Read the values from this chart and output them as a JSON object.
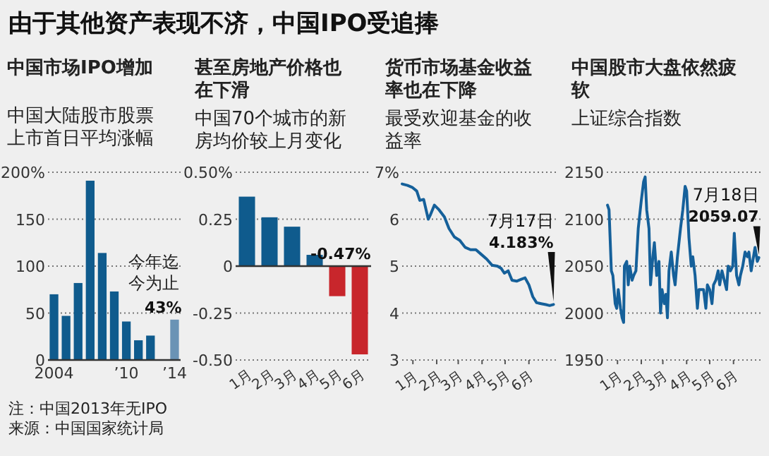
{
  "chart_data": [
    {
      "type": "bar",
      "title": "中国市场IPO增加",
      "subtitle": "中国大陆股市股票上市首日平均涨幅",
      "categories": [
        "2004",
        null,
        null,
        null,
        null,
        null,
        "’10",
        null,
        null,
        null,
        "’14"
      ],
      "values": [
        70,
        47,
        82,
        191,
        114,
        73,
        41,
        21,
        26,
        null,
        43
      ],
      "colors": [
        "#0f5b8d",
        "#0f5b8d",
        "#0f5b8d",
        "#0f5b8d",
        "#0f5b8d",
        "#0f5b8d",
        "#0f5b8d",
        "#0f5b8d",
        "#0f5b8d",
        null,
        "#6a93b5"
      ],
      "value_labels": [
        null,
        null,
        null,
        null,
        null,
        null,
        null,
        null,
        null,
        null,
        "43%"
      ],
      "ylim": [
        0,
        200
      ],
      "yticks": [
        0,
        50,
        100,
        150,
        {
          "value": 200,
          "label": "200%"
        }
      ],
      "grid": "y",
      "annotations": [
        "由于其他资产表现不济，中国IPO受追捧",
        {
          "text": "今年迄今为止",
          "x": "’14",
          "y": 43
        },
        "注：中国2013年无IPO",
        "来源：中国国家统计局"
      ]
    },
    {
      "type": "bar",
      "title": "甚至房地产价格也在下滑",
      "subtitle": "中国70个城市的新房均价较上月变化",
      "categories": [
        "1月",
        "2月",
        "3月",
        "4月",
        "5月",
        "6月"
      ],
      "values": [
        0.37,
        0.26,
        0.21,
        0.06,
        -0.16,
        -0.47
      ],
      "colors": [
        "#0f5b8d",
        "#0f5b8d",
        "#0f5b8d",
        "#0f5b8d",
        "#c8262c",
        "#c8262c"
      ],
      "value_labels": [
        null,
        null,
        null,
        null,
        null,
        "-0.47%"
      ],
      "ylim": [
        -0.5,
        0.5
      ],
      "yticks": [
        {
          "value": -0.5,
          "label": "-0.50"
        },
        -0.25,
        0,
        0.25,
        {
          "value": 0.5,
          "label": "0.50%"
        }
      ],
      "grid": "y"
    },
    {
      "type": "line",
      "title": "货币市场基金收益率也在下降",
      "subtitle": "最受欢迎基金的收益率",
      "series": [
        {
          "color": "#15609a",
          "x": [
            "2014-01-01",
            "2014-01-08",
            "2014-01-14",
            "2014-01-20",
            "2014-01-24",
            "2014-01-29",
            "2014-02-04",
            "2014-02-07",
            "2014-02-12",
            "2014-02-18",
            "2014-02-25",
            "2014-03-03",
            "2014-03-10",
            "2014-03-17",
            "2014-03-24",
            "2014-03-31",
            "2014-04-07",
            "2014-04-14",
            "2014-04-21",
            "2014-04-28",
            "2014-05-05",
            "2014-05-10",
            "2014-05-14",
            "2014-05-19",
            "2014-05-24",
            "2014-05-30",
            "2014-06-05",
            "2014-06-10",
            "2014-06-15",
            "2014-06-20",
            "2014-06-25",
            "2014-07-01",
            "2014-07-07",
            "2014-07-12",
            "2014-07-17"
          ],
          "values": [
            6.75,
            6.72,
            6.68,
            6.6,
            6.4,
            6.42,
            6.0,
            6.1,
            6.3,
            6.2,
            6.05,
            5.8,
            5.62,
            5.55,
            5.4,
            5.35,
            5.35,
            5.25,
            5.15,
            5.02,
            5.0,
            4.95,
            4.85,
            4.9,
            4.7,
            4.68,
            4.72,
            4.75,
            4.6,
            4.35,
            4.22,
            4.2,
            4.18,
            4.16,
            4.183
          ]
        }
      ],
      "xlim": [
        "2014-01-01",
        "2014-07-22"
      ],
      "xticks": [
        {
          "value": "2014-01-15",
          "label": "1月"
        },
        {
          "value": "2014-02-15",
          "label": "2月"
        },
        {
          "value": "2014-03-15",
          "label": "3月"
        },
        {
          "value": "2014-04-15",
          "label": "4月"
        },
        {
          "value": "2014-05-15",
          "label": "5月"
        },
        {
          "value": "2014-06-15",
          "label": "6月"
        }
      ],
      "ylim": [
        3,
        7
      ],
      "yticks": [
        3,
        4,
        5,
        6,
        {
          "value": 7,
          "label": "7%"
        }
      ],
      "grid": "y",
      "annotations": [
        {
          "text": "7月17日",
          "x": "2014-07-17",
          "y": 4.183
        },
        {
          "text": "4.183%",
          "x": "2014-07-17",
          "y": 4.183
        }
      ]
    },
    {
      "type": "line",
      "title": "中国股市大盘依然疲软",
      "subtitle": "上证综合指数",
      "series": [
        {
          "color": "#15609a",
          "x": [
            "2014-01-02",
            "2014-01-04",
            "2014-01-07",
            "2014-01-09",
            "2014-01-12",
            "2014-01-14",
            "2014-01-16",
            "2014-01-19",
            "2014-01-21",
            "2014-01-23",
            "2014-01-24",
            "2014-01-27",
            "2014-01-29",
            "2014-01-31",
            "2014-02-03",
            "2014-02-05",
            "2014-02-08",
            "2014-02-11",
            "2014-02-15",
            "2014-02-18",
            "2014-02-20",
            "2014-02-22",
            "2014-02-25",
            "2014-02-27",
            "2014-03-02",
            "2014-03-04",
            "2014-03-07",
            "2014-03-10",
            "2014-03-12",
            "2014-03-14",
            "2014-03-17",
            "2014-03-19",
            "2014-03-21",
            "2014-03-23",
            "2014-03-26",
            "2014-03-29",
            "2014-03-31",
            "2014-04-03",
            "2014-04-07",
            "2014-04-10",
            "2014-04-13",
            "2014-04-15",
            "2014-04-18",
            "2014-04-21",
            "2014-04-23",
            "2014-04-26",
            "2014-04-29",
            "2014-05-01",
            "2014-05-04",
            "2014-05-07",
            "2014-05-10",
            "2014-05-12",
            "2014-05-15",
            "2014-05-18",
            "2014-05-20",
            "2014-05-23",
            "2014-05-26",
            "2014-05-28",
            "2014-05-31",
            "2014-06-03",
            "2014-06-06",
            "2014-06-08",
            "2014-06-11",
            "2014-06-14",
            "2014-06-16",
            "2014-06-19",
            "2014-06-22",
            "2014-06-24",
            "2014-06-27",
            "2014-06-30",
            "2014-07-03",
            "2014-07-05",
            "2014-07-08",
            "2014-07-11",
            "2014-07-13",
            "2014-07-16",
            "2014-07-18"
          ],
          "values": [
            2115,
            2110,
            2045,
            2040,
            2010,
            2005,
            2025,
            2005,
            1995,
            1990,
            2050,
            2055,
            2030,
            2050,
            2035,
            2040,
            2045,
            2090,
            2120,
            2140,
            2145,
            2110,
            2090,
            2030,
            2060,
            2075,
            2040,
            2055,
            2000,
            2025,
            2010,
            2020,
            1995,
            2045,
            2065,
            2040,
            2030,
            2060,
            2090,
            2110,
            2135,
            2130,
            2080,
            2050,
            2060,
            2040,
            2005,
            2025,
            2025,
            2025,
            2005,
            2030,
            2025,
            2010,
            2030,
            2035,
            2045,
            2030,
            2045,
            2035,
            2025,
            2050,
            2045,
            2050,
            2085,
            2040,
            2030,
            2040,
            2050,
            2065,
            2060,
            2065,
            2045,
            2060,
            2070,
            2055,
            2059.07
          ]
        }
      ],
      "xlim": [
        "2014-01-01",
        "2014-07-22"
      ],
      "xticks": [
        {
          "value": "2014-01-15",
          "label": "1月"
        },
        {
          "value": "2014-02-15",
          "label": "2月"
        },
        {
          "value": "2014-03-15",
          "label": "3月"
        },
        {
          "value": "2014-04-15",
          "label": "4月"
        },
        {
          "value": "2014-05-15",
          "label": "5月"
        },
        {
          "value": "2014-06-15",
          "label": "6月"
        }
      ],
      "ylim": [
        1950,
        2150
      ],
      "yticks": [
        1950,
        2000,
        2050,
        2100,
        2150
      ],
      "grid": "y",
      "annotations": [
        {
          "text": "7月18日",
          "x": "2014-07-18",
          "y": 2059.07
        },
        {
          "text": "2059.07",
          "x": "2014-07-18",
          "y": 2059.07
        }
      ]
    }
  ]
}
